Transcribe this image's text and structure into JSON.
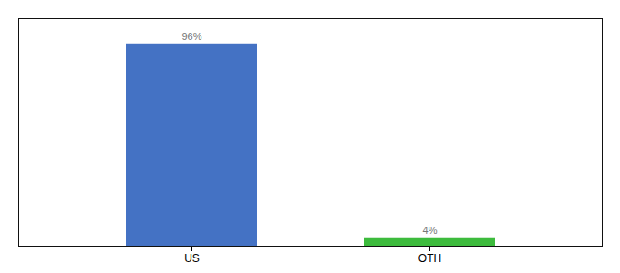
{
  "chart_data": {
    "type": "bar",
    "categories": [
      "US",
      "OTH"
    ],
    "values": [
      96,
      4
    ],
    "value_labels": [
      "96%",
      "4%"
    ],
    "colors": [
      "#4472c4",
      "#3dbb3d"
    ],
    "ylim": [
      0,
      108
    ],
    "data_labels": true,
    "tick_labels": "x"
  }
}
